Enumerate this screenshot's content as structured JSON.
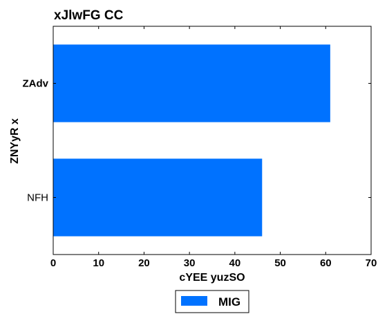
{
  "chart_data": {
    "type": "bar",
    "orientation": "horizontal",
    "title": "xJlwFG CC",
    "xlabel": "cYEE  yuzSO",
    "ylabel": "ZNYyR x",
    "categories": [
      "ZAdv",
      "NFH"
    ],
    "series": [
      {
        "name": "MIG",
        "values": [
          61,
          46
        ],
        "color": "#0072ff"
      }
    ],
    "xlim": [
      0,
      70
    ],
    "xticks": [
      "0",
      "10",
      "20",
      "30",
      "40",
      "50",
      "60",
      "70"
    ],
    "grid": false,
    "legend_position": "bottom-center"
  }
}
